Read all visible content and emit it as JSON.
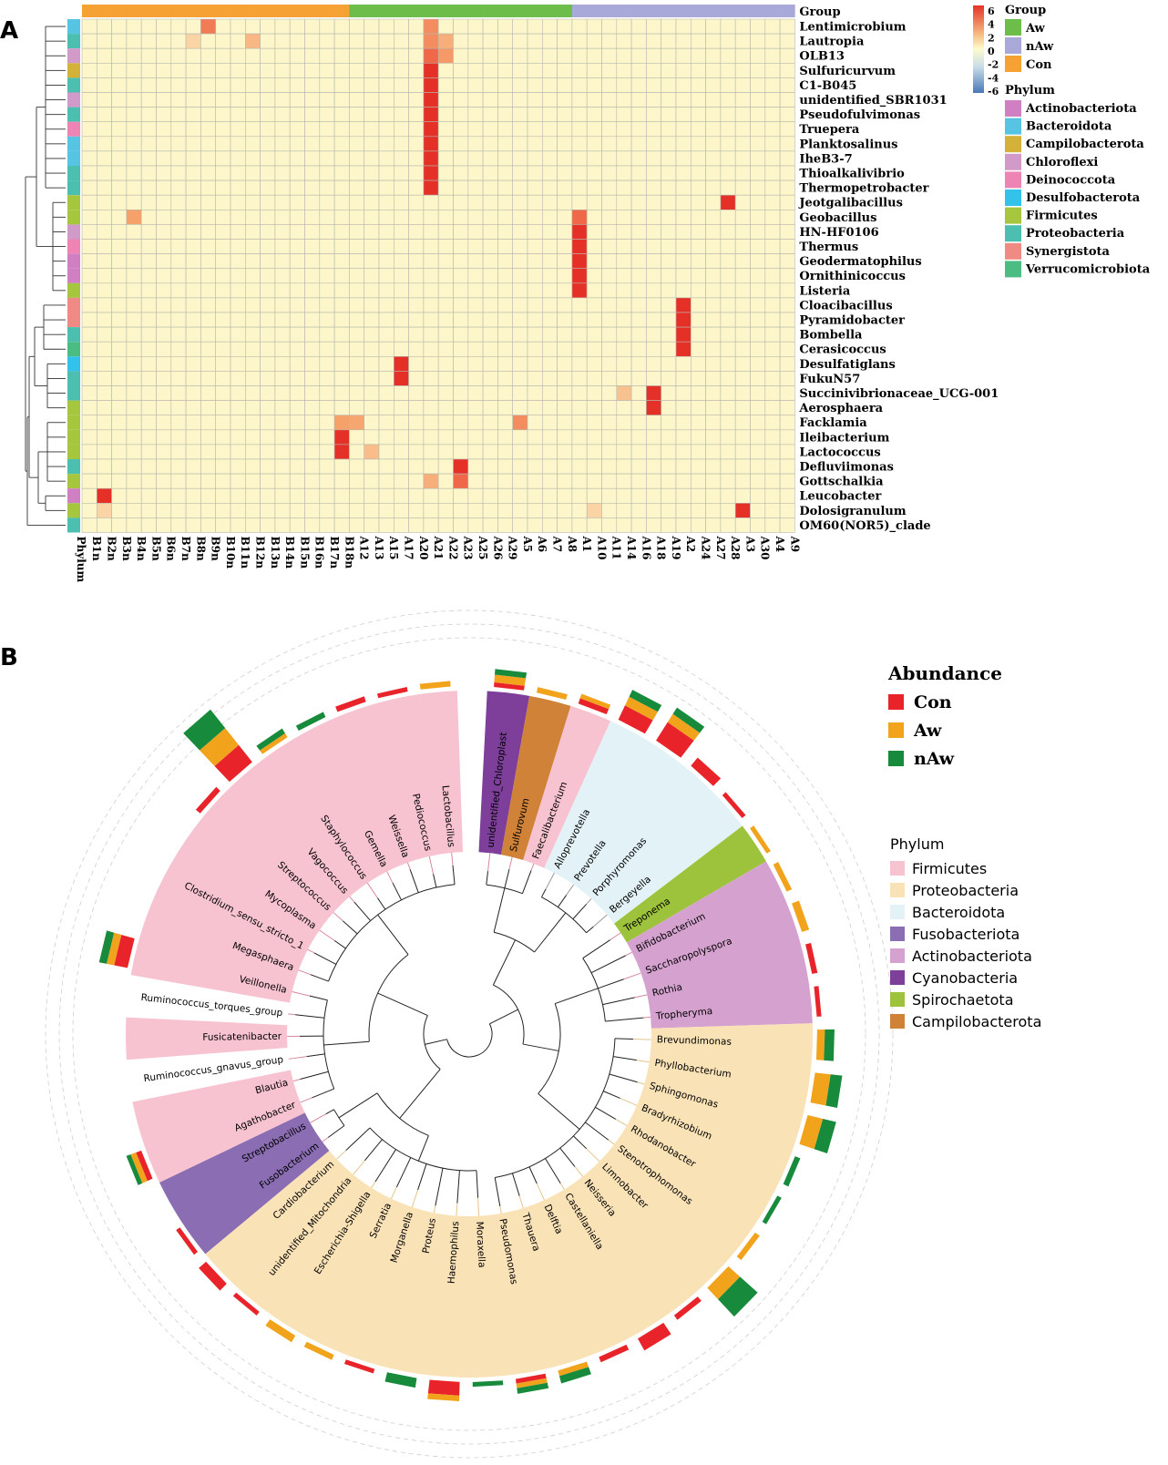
{
  "panels": {
    "a": "A",
    "b": "B"
  },
  "chart_data": [
    {
      "type": "heatmap",
      "panel": "A",
      "annotation_label": "Group",
      "side_label": "Phylum",
      "scale": {
        "ticks": [
          "6",
          "4",
          "2",
          "0",
          "-2",
          "-4",
          "-6"
        ],
        "max": 6,
        "min": -6
      },
      "groups": [
        {
          "name": "Aw",
          "color": "#6cbd4a"
        },
        {
          "name": "nAw",
          "color": "#a8a9d8"
        },
        {
          "name": "Con",
          "color": "#f5a133"
        }
      ],
      "legend_group_title": "Group",
      "legend_phylum_title": "Phylum",
      "phyla": [
        {
          "name": "Actinobacteriota",
          "color": "#d07fc2"
        },
        {
          "name": "Bacteroidota",
          "color": "#57c4e4"
        },
        {
          "name": "Campilobacterota",
          "color": "#d4b23a"
        },
        {
          "name": "Chloroflexi",
          "color": "#d19ac9"
        },
        {
          "name": "Deinococcota",
          "color": "#ed84b3"
        },
        {
          "name": "Desulfobacterota",
          "color": "#32c2ea"
        },
        {
          "name": "Firmicutes",
          "color": "#a6c63e"
        },
        {
          "name": "Proteobacteria",
          "color": "#4dbfb1"
        },
        {
          "name": "Synergistota",
          "color": "#f08a85"
        },
        {
          "name": "Verrucomicrobiota",
          "color": "#4cbd82"
        }
      ],
      "columns": [
        "B1n",
        "B2n",
        "B3n",
        "B4n",
        "B5n",
        "B6n",
        "B7n",
        "B8n",
        "B9n",
        "B10n",
        "B11n",
        "B12n",
        "B13n",
        "B14n",
        "B15n",
        "B16n",
        "B17n",
        "B18n",
        "A12",
        "A13",
        "A15",
        "A17",
        "A20",
        "A21",
        "A22",
        "A23",
        "A25",
        "A26",
        "A29",
        "A5",
        "A6",
        "A7",
        "A8",
        "A1",
        "A10",
        "A11",
        "A14",
        "A16",
        "A18",
        "A19",
        "A2",
        "A24",
        "A27",
        "A28",
        "A3",
        "A30",
        "A4",
        "A9"
      ],
      "column_groups": [
        "Con",
        "Con",
        "Con",
        "Con",
        "Con",
        "Con",
        "Con",
        "Con",
        "Con",
        "Con",
        "Con",
        "Con",
        "Con",
        "Con",
        "Con",
        "Con",
        "Con",
        "Con",
        "Aw",
        "Aw",
        "Aw",
        "Aw",
        "Aw",
        "Aw",
        "Aw",
        "Aw",
        "Aw",
        "Aw",
        "Aw",
        "Aw",
        "Aw",
        "Aw",
        "Aw",
        "nAw",
        "nAw",
        "nAw",
        "nAw",
        "nAw",
        "nAw",
        "nAw",
        "nAw",
        "nAw",
        "nAw",
        "nAw",
        "nAw",
        "nAw",
        "nAw",
        "nAw"
      ],
      "rows": [
        {
          "name": "Lentimicrobium",
          "phylum": "Bacteroidota",
          "high": {
            "B9n": 4
          },
          "col_hi": {
            "A21": 3.5
          }
        },
        {
          "name": "Lautropia",
          "phylum": "Proteobacteria",
          "high": {
            "B8n": 1.2,
            "B12n": 2.2,
            "A21": 3.5,
            "A22": 2.5
          }
        },
        {
          "name": "OLB13",
          "phylum": "Chloroflexi",
          "high": {
            "A21": 4.5,
            "A22": 3.2
          }
        },
        {
          "name": "Sulfuricurvum",
          "phylum": "Campilobacterota",
          "high": {
            "A21": 6
          }
        },
        {
          "name": "C1-B045",
          "phylum": "Proteobacteria",
          "high": {
            "A21": 6
          }
        },
        {
          "name": "unidentified_SBR1031",
          "phylum": "Chloroflexi",
          "high": {
            "A21": 6
          }
        },
        {
          "name": "Pseudofulvimonas",
          "phylum": "Proteobacteria",
          "high": {
            "A21": 6
          }
        },
        {
          "name": "Truepera",
          "phylum": "Deinococcota",
          "high": {
            "A21": 6
          }
        },
        {
          "name": "Planktosalinus",
          "phylum": "Bacteroidota",
          "high": {
            "A21": 6
          }
        },
        {
          "name": "IheB3-7",
          "phylum": "Bacteroidota",
          "high": {
            "A21": 6
          }
        },
        {
          "name": "Thioalkalivibrio",
          "phylum": "Proteobacteria",
          "high": {
            "A21": 6
          }
        },
        {
          "name": "Thermopetrobacter",
          "phylum": "Proteobacteria",
          "high": {
            "A21": 6
          }
        },
        {
          "name": "Jeotgalibacillus",
          "phylum": "Firmicutes",
          "high": {
            "A28": 6
          }
        },
        {
          "name": "Geobacillus",
          "phylum": "Firmicutes",
          "high": {
            "B4n": 3,
            "A1": 4.5
          }
        },
        {
          "name": "HN-HF0106",
          "phylum": "Chloroflexi",
          "high": {
            "A1": 6
          }
        },
        {
          "name": "Thermus",
          "phylum": "Deinococcota",
          "high": {
            "A1": 6
          }
        },
        {
          "name": "Geodermatophilus",
          "phylum": "Actinobacteriota",
          "high": {
            "A1": 6
          }
        },
        {
          "name": "Ornithinicoccus",
          "phylum": "Actinobacteriota",
          "high": {
            "A1": 6
          }
        },
        {
          "name": "Listeria",
          "phylum": "Firmicutes",
          "high": {
            "A1": 6
          }
        },
        {
          "name": "Cloacibacillus",
          "phylum": "Synergistota",
          "high": {
            "A2": 6
          }
        },
        {
          "name": "Pyramidobacter",
          "phylum": "Synergistota",
          "high": {
            "A2": 6
          }
        },
        {
          "name": "Bombella",
          "phylum": "Proteobacteria",
          "high": {
            "A2": 6
          }
        },
        {
          "name": "Cerasicoccus",
          "phylum": "Verrucomicrobiota",
          "high": {
            "A2": 6
          }
        },
        {
          "name": "Desulfatiglans",
          "phylum": "Desulfobacterota",
          "high": {
            "A17": 6
          }
        },
        {
          "name": "FukuN57",
          "phylum": "Proteobacteria",
          "high": {
            "A17": 6
          }
        },
        {
          "name": "Succinivibrionaceae_UCG-001",
          "phylum": "Proteobacteria",
          "high": {
            "A14": 1.8,
            "A18": 6
          }
        },
        {
          "name": "Aerosphaera",
          "phylum": "Firmicutes",
          "high": {
            "A18": 6
          }
        },
        {
          "name": "Facklamia",
          "phylum": "Firmicutes",
          "high": {
            "B18n": 3,
            "A12": 2.8,
            "A5": 3.5
          }
        },
        {
          "name": "Ileibacterium",
          "phylum": "Firmicutes",
          "high": {
            "B18n": 6
          }
        },
        {
          "name": "Lactococcus",
          "phylum": "Firmicutes",
          "high": {
            "B18n": 6,
            "A13": 2
          }
        },
        {
          "name": "Defluviimonas",
          "phylum": "Proteobacteria",
          "high": {
            "A23": 6
          }
        },
        {
          "name": "Gottschalkia",
          "phylum": "Firmicutes",
          "high": {
            "A21": 2.5,
            "A23": 4.5
          }
        },
        {
          "name": "Leucobacter",
          "phylum": "Actinobacteriota",
          "high": {
            "B2n": 6
          }
        },
        {
          "name": "Dolosigranulum",
          "phylum": "Firmicutes",
          "high": {
            "B2n": 1.2,
            "A10": 1.2,
            "A3": 6
          }
        },
        {
          "name": "OM60(NOR5)_clade",
          "phylum": "Proteobacteria",
          "high": {}
        }
      ]
    },
    {
      "type": "circular-tree",
      "panel": "B",
      "legend_abundance_title": "Abundance",
      "abundance_groups": [
        {
          "name": "Con",
          "color": "#e8242a"
        },
        {
          "name": "Aw",
          "color": "#f2a31c"
        },
        {
          "name": "nAw",
          "color": "#178a3c"
        }
      ],
      "legend_phylum_title": "Phylum",
      "phyla": [
        {
          "name": "Firmicutes",
          "color": "#f7c3d0"
        },
        {
          "name": "Proteobacteria",
          "color": "#fae2b7"
        },
        {
          "name": "Bacteroidota",
          "color": "#e3f2f7"
        },
        {
          "name": "Fusobacteriota",
          "color": "#8a6db2"
        },
        {
          "name": "Actinobacteriota",
          "color": "#d5a2d0"
        },
        {
          "name": "Cyanobacteria",
          "color": "#7d3f99"
        },
        {
          "name": "Spirochaetota",
          "color": "#9cc33b"
        },
        {
          "name": "Campilobacterota",
          "color": "#cf8238"
        }
      ],
      "leaves": [
        {
          "name": "unidentified_Chloroplast",
          "phylum": "Cyanobacteria",
          "bars": [
            0.05,
            0.2,
            0.1
          ]
        },
        {
          "name": "Sulfurovum",
          "phylum": "Campilobacterota",
          "bars": [
            0,
            0.1,
            0
          ]
        },
        {
          "name": "Faecalibacterium",
          "phylum": "Firmicutes",
          "bars": [
            0.1,
            0.05,
            0
          ]
        },
        {
          "name": "Alloprevotella",
          "phylum": "Bacteroidota",
          "bars": [
            0.6,
            0.3,
            0.2
          ]
        },
        {
          "name": "Prevotella",
          "phylum": "Bacteroidota",
          "bars": [
            0.9,
            0.3,
            0.2
          ]
        },
        {
          "name": "Porphyromonas",
          "phylum": "Bacteroidota",
          "bars": [
            0.35,
            0,
            0
          ]
        },
        {
          "name": "Bergeyella",
          "phylum": "Bacteroidota",
          "bars": [
            0.05,
            0,
            0
          ]
        },
        {
          "name": "Treponema",
          "phylum": "Spirochaetota",
          "bars": [
            0,
            0.05,
            0
          ]
        },
        {
          "name": "Bifidobacterium",
          "phylum": "Actinobacteriota",
          "bars": [
            0,
            0.1,
            0
          ]
        },
        {
          "name": "Saccharopolyspora",
          "phylum": "Actinobacteriota",
          "bars": [
            0,
            0.2,
            0
          ]
        },
        {
          "name": "Rothia",
          "phylum": "Actinobacteriota",
          "bars": [
            0.1,
            0,
            0
          ]
        },
        {
          "name": "Tropheryma",
          "phylum": "Actinobacteriota",
          "bars": [
            0.05,
            0,
            0
          ]
        },
        {
          "name": "Brevundimonas",
          "phylum": "Proteobacteria",
          "bars": [
            0,
            0.2,
            0.3
          ]
        },
        {
          "name": "Phyllobacterium",
          "phylum": "Proteobacteria",
          "bars": [
            0,
            0.6,
            0.4
          ]
        },
        {
          "name": "Sphingomonas",
          "phylum": "Proteobacteria",
          "bars": [
            0,
            0.6,
            0.5
          ]
        },
        {
          "name": "Bradyrhizobium",
          "phylum": "Proteobacteria",
          "bars": [
            0,
            0,
            0.1
          ]
        },
        {
          "name": "Rhodanobacter",
          "phylum": "Proteobacteria",
          "bars": [
            0,
            0,
            0.05
          ]
        },
        {
          "name": "Stenotrophomonas",
          "phylum": "Proteobacteria",
          "bars": [
            0,
            0.1,
            0
          ]
        },
        {
          "name": "Limnobacter",
          "phylum": "Proteobacteria",
          "bars": [
            0,
            0.6,
            1.0
          ]
        },
        {
          "name": "Neisseria",
          "phylum": "Proteobacteria",
          "bars": [
            0.1,
            0,
            0
          ]
        },
        {
          "name": "Castellaniella",
          "phylum": "Proteobacteria",
          "bars": [
            0.5,
            0,
            0
          ]
        },
        {
          "name": "Delftia",
          "phylum": "Proteobacteria",
          "bars": [
            0.1,
            0,
            0
          ]
        },
        {
          "name": "Thauera",
          "phylum": "Proteobacteria",
          "bars": [
            0,
            0.1,
            0.2
          ]
        },
        {
          "name": "Pseudomonas",
          "phylum": "Proteobacteria",
          "bars": [
            0.05,
            0.05,
            0.1
          ]
        },
        {
          "name": "Moraxella",
          "phylum": "Proteobacteria",
          "bars": [
            0,
            0,
            0.05
          ]
        },
        {
          "name": "Haemophilus",
          "phylum": "Proteobacteria",
          "bars": [
            0.5,
            0.1,
            0
          ]
        },
        {
          "name": "Proteus",
          "phylum": "Proteobacteria",
          "bars": [
            0,
            0,
            0.3
          ]
        },
        {
          "name": "Morganella",
          "phylum": "Proteobacteria",
          "bars": [
            0.05,
            0,
            0
          ]
        },
        {
          "name": "Serratia",
          "phylum": "Proteobacteria",
          "bars": [
            0,
            0.1,
            0
          ]
        },
        {
          "name": "Escherichia-Shigella",
          "phylum": "Proteobacteria",
          "bars": [
            0,
            0.2,
            0
          ]
        },
        {
          "name": "unidentified_Mitochondria",
          "phylum": "Proteobacteria",
          "bars": [
            0.05,
            0,
            0
          ]
        },
        {
          "name": "Cardiobacterium",
          "phylum": "Proteobacteria",
          "bars": [
            0.3,
            0,
            0
          ]
        },
        {
          "name": "Fusobacterium",
          "phylum": "Fusobacteriota",
          "bars": [
            0.05,
            0,
            0
          ]
        },
        {
          "name": "Streptobacillus",
          "phylum": "Fusobacteriota",
          "bars": [
            0,
            0,
            0
          ]
        },
        {
          "name": "Agathobacter",
          "phylum": "Firmicutes",
          "bars": [
            0.1,
            0.1,
            0.05
          ]
        },
        {
          "name": "Blautia",
          "phylum": "Firmicutes",
          "bars": [
            0,
            0,
            0
          ]
        },
        {
          "name": "Ruminococcus_gnavus_group",
          "phylum": "None",
          "bars": [
            0,
            0,
            0
          ]
        },
        {
          "name": "Fusicatenibacter",
          "phylum": "Firmicutes",
          "bars": [
            0,
            0,
            0
          ]
        },
        {
          "name": "Ruminococcus_torques_group",
          "phylum": "None",
          "bars": [
            0,
            0,
            0
          ]
        },
        {
          "name": "Veillonella",
          "phylum": "Firmicutes",
          "bars": [
            0.5,
            0.2,
            0.2
          ]
        },
        {
          "name": "Megasphaera",
          "phylum": "Firmicutes",
          "bars": [
            0,
            0,
            0
          ]
        },
        {
          "name": "Clostridium_sensu_stricto_1",
          "phylum": "Firmicutes",
          "bars": [
            0,
            0,
            0
          ]
        },
        {
          "name": "Mycoplasma",
          "phylum": "Firmicutes",
          "bars": [
            0,
            0,
            0
          ]
        },
        {
          "name": "Streptococcus",
          "phylum": "Firmicutes",
          "bars": [
            0.1,
            0,
            0
          ]
        },
        {
          "name": "Vagococcus",
          "phylum": "Firmicutes",
          "bars": [
            0.9,
            0.9,
            1.0
          ]
        },
        {
          "name": "Staphylococcus",
          "phylum": "Firmicutes",
          "bars": [
            0,
            0.05,
            0.1
          ]
        },
        {
          "name": "Gemella",
          "phylum": "Firmicutes",
          "bars": [
            0,
            0,
            0.1
          ]
        },
        {
          "name": "Weissella",
          "phylum": "Firmicutes",
          "bars": [
            0.1,
            0,
            0
          ]
        },
        {
          "name": "Pediococcus",
          "phylum": "Firmicutes",
          "bars": [
            0.05,
            0,
            0
          ]
        },
        {
          "name": "Lactobacillus",
          "phylum": "Firmicutes",
          "bars": [
            0,
            0.1,
            0
          ]
        }
      ]
    }
  ]
}
